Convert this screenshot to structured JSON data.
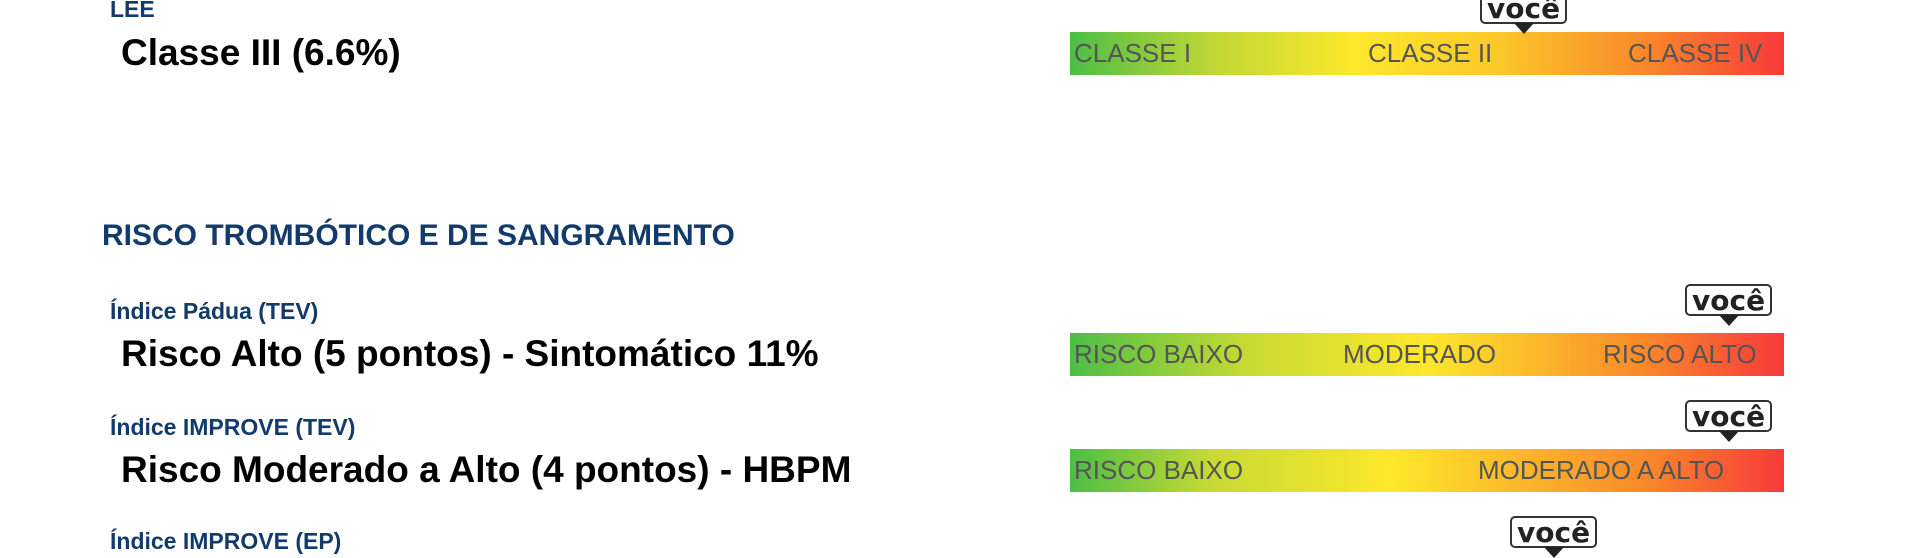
{
  "lee": {
    "label": "LEE",
    "value": "Classe III (6.6%)",
    "marker": "você",
    "scale": [
      "CLASSE I",
      "CLASSE II",
      "CLASSE IV"
    ]
  },
  "section": {
    "title": "RISCO TROMBÓTICO E DE SANGRAMENTO"
  },
  "padua": {
    "label": "Índice Pádua (TEV)",
    "value": "Risco Alto (5 pontos) - Sintomático 11%",
    "marker": "você",
    "scale": [
      "RISCO BAIXO",
      "MODERADO",
      "RISCO ALTO"
    ]
  },
  "improve_tev": {
    "label": "Índice IMPROVE (TEV)",
    "value": "Risco Moderado a Alto (4 pontos) - HBPM",
    "marker": "você",
    "scale": [
      "RISCO BAIXO",
      "MODERADO A ALTO"
    ]
  },
  "improve_ep": {
    "label": "Índice IMPROVE (EP)",
    "marker": "você"
  }
}
